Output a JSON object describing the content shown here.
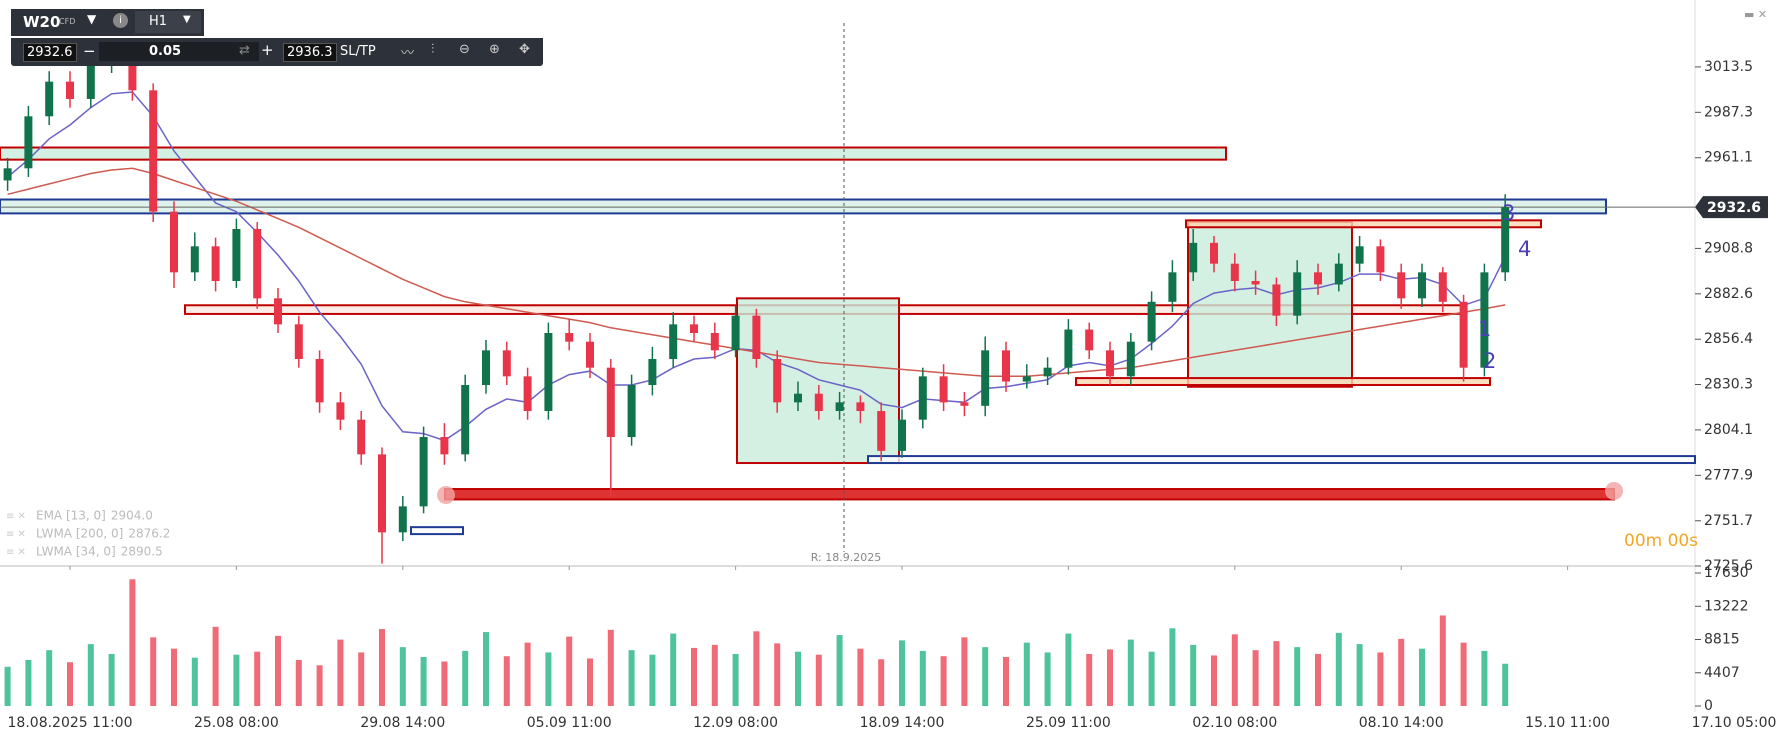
{
  "toolbar": {
    "symbol": "W20",
    "instrument_type": "CFD",
    "timeframe": "H1",
    "bid": "2932.6",
    "lot": "0.05",
    "ask": "2936.3",
    "sltp": "SL/TP"
  },
  "chart_data": {
    "type": "candlestick",
    "categories": [
      null,
      null,
      null,
      "18.08.2025 11:00",
      null,
      null,
      null,
      null,
      null,
      null,
      null,
      "25.08 08:00",
      null,
      null,
      null,
      null,
      null,
      null,
      null,
      "29.08 14:00",
      null,
      null,
      null,
      null,
      null,
      null,
      null,
      "05.09 11:00",
      null,
      null,
      null,
      null,
      null,
      null,
      null,
      "12.09 08:00",
      null,
      null,
      null,
      null,
      null,
      null,
      null,
      "18.09 14:00",
      null,
      null,
      null,
      null,
      null,
      null,
      null,
      "25.09 11:00",
      null,
      null,
      null,
      null,
      null,
      null,
      null,
      "02.10 08:00",
      null,
      null,
      null,
      null,
      null,
      null,
      null,
      "08.10 14:00",
      null,
      null,
      null,
      null,
      null,
      null,
      null,
      "15.10 11:00",
      null,
      null,
      null,
      null,
      null,
      null,
      null,
      "17.10 05:00"
    ],
    "open": [
      2948,
      2955,
      2985,
      3005,
      2995,
      3015,
      3020,
      3000,
      2930,
      2895,
      2910,
      2890,
      2920,
      2880,
      2865,
      2845,
      2820,
      2810,
      2790,
      2745,
      2760,
      2800,
      2790,
      2830,
      2850,
      2835,
      2815,
      2860,
      2855,
      2840,
      2800,
      2830,
      2845,
      2865,
      2860,
      2850,
      2870,
      2845,
      2820,
      2825,
      2815,
      2820,
      2815,
      2792,
      2810,
      2835,
      2820,
      2818,
      2850,
      2832,
      2835,
      2840,
      2862,
      2850,
      2835,
      2855,
      2878,
      2895,
      2912,
      2900,
      2890,
      2888,
      2870,
      2895,
      2888,
      2900,
      2910,
      2895,
      2880,
      2895,
      2878,
      2840,
      2895,
      null,
      null,
      null,
      null,
      null,
      null,
      null,
      null,
      null,
      null,
      null
    ],
    "high": [
      2961,
      2991,
      3011,
      3011,
      3021,
      3026,
      3024,
      3004,
      2936,
      2918,
      2915,
      2926,
      2924,
      2886,
      2870,
      2850,
      2826,
      2815,
      2794,
      2766,
      2806,
      2808,
      2836,
      2856,
      2855,
      2840,
      2866,
      2868,
      2860,
      2845,
      2836,
      2852,
      2872,
      2870,
      2866,
      2876,
      2874,
      2850,
      2832,
      2830,
      2826,
      2824,
      2820,
      2816,
      2840,
      2842,
      2826,
      2858,
      2855,
      2842,
      2846,
      2868,
      2866,
      2855,
      2860,
      2884,
      2902,
      2920,
      2916,
      2906,
      2896,
      2892,
      2902,
      2900,
      2906,
      2916,
      2914,
      2900,
      2900,
      2898,
      2882,
      2900,
      2940,
      null,
      null,
      null,
      null,
      null,
      null,
      null,
      null,
      null,
      null,
      null
    ],
    "low": [
      2942,
      2950,
      2980,
      2990,
      2990,
      3010,
      2994,
      2924,
      2886,
      2890,
      2884,
      2886,
      2874,
      2860,
      2840,
      2814,
      2804,
      2784,
      2727,
      2740,
      2756,
      2784,
      2786,
      2825,
      2830,
      2810,
      2810,
      2850,
      2834,
      2765,
      2795,
      2824,
      2840,
      2855,
      2845,
      2846,
      2840,
      2814,
      2815,
      2810,
      2810,
      2808,
      2786,
      2788,
      2805,
      2815,
      2812,
      2812,
      2826,
      2828,
      2830,
      2836,
      2845,
      2830,
      2830,
      2850,
      2872,
      2890,
      2895,
      2884,
      2882,
      2864,
      2865,
      2882,
      2884,
      2895,
      2890,
      2874,
      2875,
      2872,
      2832,
      2835,
      2890,
      null,
      null,
      null,
      null,
      null,
      null,
      null,
      null,
      null,
      null,
      null
    ],
    "close": [
      2955,
      2985,
      3005,
      2995,
      3015,
      3020,
      3000,
      2930,
      2895,
      2910,
      2890,
      2920,
      2880,
      2865,
      2845,
      2820,
      2810,
      2790,
      2745,
      2760,
      2800,
      2790,
      2830,
      2850,
      2835,
      2815,
      2860,
      2855,
      2840,
      2800,
      2830,
      2845,
      2865,
      2860,
      2850,
      2870,
      2845,
      2820,
      2825,
      2815,
      2820,
      2815,
      2792,
      2810,
      2835,
      2820,
      2818,
      2850,
      2832,
      2835,
      2840,
      2862,
      2850,
      2835,
      2855,
      2878,
      2895,
      2912,
      2900,
      2890,
      2888,
      2870,
      2895,
      2888,
      2900,
      2910,
      2895,
      2880,
      2895,
      2878,
      2840,
      2895,
      2932.6,
      null,
      null,
      null,
      null,
      null,
      null,
      null,
      null,
      null,
      null,
      null
    ],
    "volume": [
      5200,
      6100,
      7400,
      5800,
      8200,
      6900,
      16800,
      9100,
      7600,
      6400,
      10500,
      6800,
      7200,
      9300,
      6100,
      5400,
      8800,
      7100,
      10200,
      7800,
      6500,
      5900,
      7300,
      9800,
      6600,
      8400,
      7100,
      9200,
      6300,
      10100,
      7400,
      6800,
      9600,
      7700,
      8100,
      6900,
      9900,
      8300,
      7200,
      6800,
      9400,
      7600,
      6200,
      8700,
      7300,
      6600,
      9100,
      7800,
      6500,
      8400,
      7100,
      9600,
      6900,
      7500,
      8800,
      7200,
      10300,
      8100,
      6700,
      9500,
      7400,
      8600,
      7800,
      6900,
      9700,
      8200,
      7100,
      8900,
      7600,
      12000,
      8400,
      7300,
      5600,
      null,
      null,
      null,
      null,
      null,
      null,
      null,
      null,
      null,
      null,
      null
    ],
    "up_color": "#11734b",
    "down_color": "#e8354a",
    "volume_up_color": "#4fc39a",
    "volume_down_color": "#f06b77",
    "ylim": [
      2725.6,
      3046.9
    ],
    "yticks": [
      3013.5,
      2987.3,
      2961.1,
      2908.8,
      2882.6,
      2856.4,
      2830.3,
      2804.1,
      2777.9,
      2751.7,
      2725.6
    ],
    "volume_ylim": [
      0,
      17630
    ],
    "volume_yticks": [
      17630,
      13222,
      8815,
      4407,
      0
    ],
    "indicators": [
      {
        "name": "EMA [13, 0]",
        "value_label": "2904.0",
        "color": "#6a63c8",
        "values": [
          2950,
          2960,
          2972,
          2980,
          2990,
          2998,
          2999,
          2985,
          2965,
          2950,
          2935,
          2930,
          2918,
          2905,
          2890,
          2872,
          2858,
          2842,
          2818,
          2803,
          2802,
          2798,
          2806,
          2816,
          2822,
          2820,
          2830,
          2836,
          2838,
          2830,
          2830,
          2833,
          2840,
          2845,
          2846,
          2851,
          2850,
          2843,
          2839,
          2833,
          2830,
          2827,
          2819,
          2817,
          2822,
          2821,
          2820,
          2828,
          2829,
          2831,
          2833,
          2841,
          2843,
          2841,
          2845,
          2854,
          2864,
          2877,
          2883,
          2885,
          2886,
          2882,
          2885,
          2886,
          2889,
          2894,
          2894,
          2891,
          2892,
          2888,
          2876,
          2880,
          2904,
          null,
          null,
          null,
          null,
          null,
          null,
          null,
          null,
          null,
          null,
          null
        ]
      },
      {
        "name": "LWMA [200, 0]",
        "value_label": "2876.2",
        "color": "#cf5a50",
        "values": [
          2940,
          2943,
          2946,
          2949,
          2952,
          2954,
          2955,
          2952,
          2948,
          2944,
          2940,
          2936,
          2931,
          2926,
          2921,
          2915,
          2909,
          2903,
          2897,
          2891,
          2886,
          2881,
          2878,
          2876,
          2874,
          2872,
          2870,
          2868,
          2866,
          2863,
          2861,
          2859,
          2857,
          2855,
          2853,
          2851,
          2849,
          2847,
          2845,
          2843,
          2842,
          2841,
          2840,
          2839,
          2838,
          2837,
          2836,
          2835,
          2835,
          2835,
          2836,
          2837,
          2838,
          2839,
          2840,
          2842,
          2844,
          2846,
          2848,
          2850,
          2852,
          2854,
          2856,
          2858,
          2860,
          2862,
          2864,
          2866,
          2868,
          2870,
          2872,
          2874,
          2876.2,
          null,
          null,
          null,
          null,
          null,
          null,
          null,
          null,
          null,
          null,
          null
        ]
      },
      {
        "name": "LWMA [34, 0]",
        "value_label": "2890.5"
      }
    ],
    "zones": [
      {
        "top": 2967,
        "bottom": 2960,
        "fill": "#c9ecdc",
        "stroke": "#c00000"
      },
      {
        "top": 2937,
        "bottom": 2929,
        "fill": "#d6efe6",
        "stroke": "#1f3a93"
      },
      {
        "top": 2876,
        "bottom": 2871,
        "fill": "#fde9e0",
        "stroke": "#c00000"
      },
      {
        "top": 2880,
        "bottom": 2785,
        "fill": "#c9ecdc",
        "stroke": "#c00000"
      },
      {
        "top": 2924,
        "bottom": 2829,
        "fill": "#c9ecdc",
        "stroke": "#c00000"
      },
      {
        "top": 2925,
        "bottom": 2921,
        "fill": "#fbd6b0",
        "stroke": "#c00000"
      },
      {
        "top": 2834,
        "bottom": 2830,
        "fill": "#fbd6b0",
        "stroke": "#c00000"
      },
      {
        "top": 2789,
        "bottom": 2785,
        "fill": "#ffffff",
        "stroke": "#1f3a93"
      },
      {
        "top": 2770,
        "bottom": 2764,
        "fill": "#d50000",
        "stroke": "#c00000"
      },
      {
        "top": 2748,
        "bottom": 2744,
        "fill": "#ffffff",
        "stroke": "#1f3a93"
      }
    ],
    "wave_labels": [
      "3",
      "4",
      "1",
      "2"
    ],
    "marker_label": "R: 18.9.2025",
    "timer": "00m 00s"
  }
}
